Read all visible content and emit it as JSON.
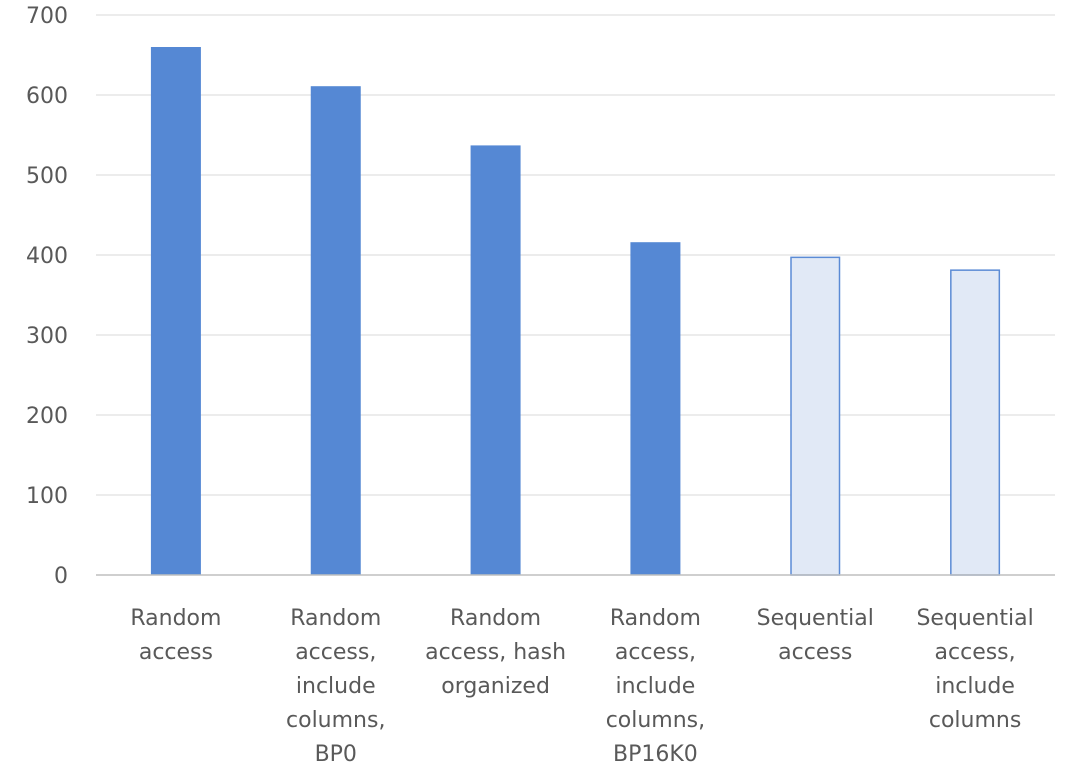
{
  "chart_data": {
    "type": "bar",
    "title": "",
    "xlabel": "",
    "ylabel": "",
    "ylim": [
      0,
      700
    ],
    "yticks": [
      0,
      100,
      200,
      300,
      400,
      500,
      600,
      700
    ],
    "grid": true,
    "categories": [
      [
        "Random",
        "access"
      ],
      [
        "Random",
        "access,",
        "include",
        "columns,",
        "BP0"
      ],
      [
        "Random",
        "access, hash",
        "organized"
      ],
      [
        "Random",
        "access,",
        "include",
        "columns,",
        "BP16K0"
      ],
      [
        "Sequential",
        "access"
      ],
      [
        "Sequential",
        "access,",
        "include",
        "columns"
      ]
    ],
    "values": [
      660,
      611,
      537,
      416,
      398,
      382
    ],
    "styles": [
      "solid",
      "solid",
      "solid",
      "solid",
      "light",
      "light"
    ],
    "colors": {
      "solid": "#5588d4",
      "light_fill": "#e1e9f6",
      "light_stroke": "#5b8bd5"
    }
  }
}
